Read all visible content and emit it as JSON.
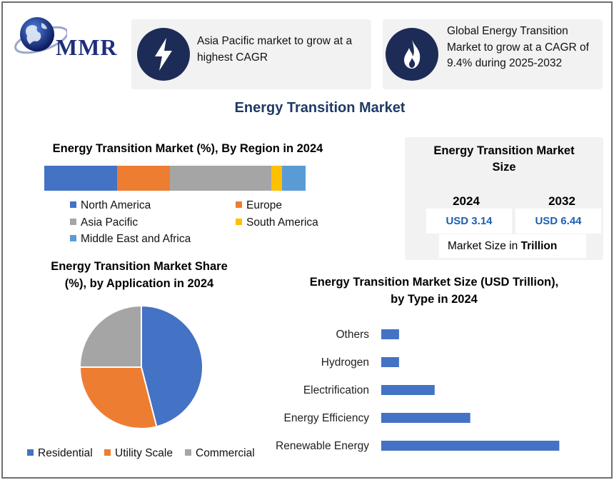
{
  "logo": {
    "text": "MMR",
    "icon": "globe-icon"
  },
  "cards": [
    {
      "icon": "lightning-icon",
      "text_line1": "Asia Pacific market to grow at a",
      "text_line2": "highest CAGR"
    },
    {
      "icon": "flame-icon",
      "text_line1": "Global Energy Transition",
      "text_line2": "Market to grow at a CAGR of",
      "text_line3": "9.4% during 2025-2032"
    }
  ],
  "main_title": "Energy Transition Market",
  "colors": {
    "navy": "#1d2c57",
    "blue": "#4472c4",
    "orange": "#ed7d31",
    "gray": "#a5a5a5",
    "yellow": "#ffc000",
    "lightblue": "#5b9bd5",
    "value_text": "#1f5fae"
  },
  "region": {
    "title": "Energy Transition Market (%), By Region in 2024",
    "legend": [
      "North America",
      "Europe",
      "Asia Pacific",
      "South America",
      "Middle East and Africa"
    ]
  },
  "market_size": {
    "title_line1": "Energy Transition Market",
    "title_line2": "Size",
    "year1": "2024",
    "year2": "2032",
    "value1": "USD 3.14",
    "value2": "USD 6.44",
    "unit_prefix": "Market Size in",
    "unit_bold": "Trillion"
  },
  "application": {
    "title_line1": "Energy Transition Market Share",
    "title_line2": "(%), by Application in 2024",
    "legend": [
      "Residential",
      "Utility Scale",
      "Commercial"
    ]
  },
  "type_chart": {
    "title_line1": "Energy Transition Market Size (USD Trillion),",
    "title_line2": "by Type in 2024"
  },
  "chart_data": [
    {
      "type": "bar",
      "orientation": "horizontal-stacked",
      "title": "Energy Transition Market (%), By Region in 2024",
      "series": [
        {
          "name": "North America",
          "values": [
            28
          ]
        },
        {
          "name": "Europe",
          "values": [
            20
          ]
        },
        {
          "name": "Asia Pacific",
          "values": [
            39
          ]
        },
        {
          "name": "South America",
          "values": [
            4
          ]
        },
        {
          "name": "Middle East and Africa",
          "values": [
            9
          ]
        }
      ],
      "legend": "bottom"
    },
    {
      "type": "pie",
      "title": "Energy Transition Market Share (%), by Application in 2024",
      "labels": [
        "Residential",
        "Utility Scale",
        "Commercial"
      ],
      "values": [
        46,
        29,
        25
      ],
      "legend": "bottom"
    },
    {
      "type": "bar",
      "orientation": "horizontal",
      "title": "Energy Transition Market Size (USD Trillion), by Type in 2024",
      "categories": [
        "Others",
        "Hydrogen",
        "Electrification",
        "Energy Efficiency",
        "Renewable Energy"
      ],
      "values": [
        0.15,
        0.15,
        0.45,
        0.75,
        1.5
      ],
      "xlim": [
        0,
        1.6
      ],
      "grid": false
    }
  ]
}
